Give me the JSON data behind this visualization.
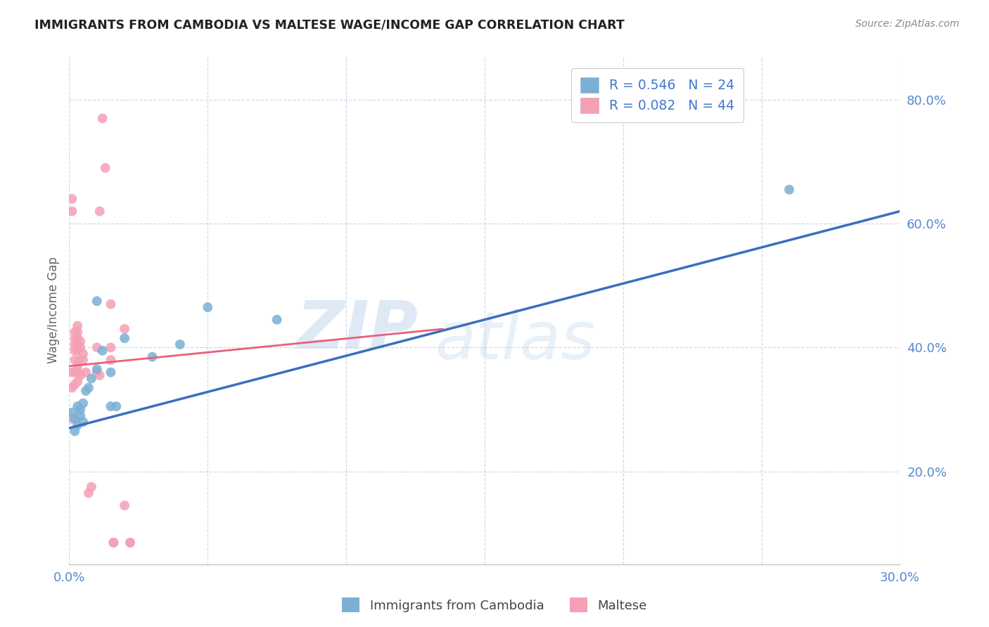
{
  "title": "IMMIGRANTS FROM CAMBODIA VS MALTESE WAGE/INCOME GAP CORRELATION CHART",
  "source": "Source: ZipAtlas.com",
  "ylabel_label": "Wage/Income Gap",
  "x_min": 0.0,
  "x_max": 0.3,
  "y_min": 0.05,
  "y_max": 0.87,
  "right_ytick_values": [
    0.2,
    0.4,
    0.6,
    0.8
  ],
  "bottom_xtick_values": [
    0.0,
    0.05,
    0.1,
    0.15,
    0.2,
    0.25,
    0.3
  ],
  "legend_entries": [
    {
      "label": "R = 0.546   N = 24",
      "color": "#7bafd4"
    },
    {
      "label": "R = 0.082   N = 44",
      "color": "#f4a0b5"
    }
  ],
  "blue_scatter": [
    [
      0.001,
      0.295
    ],
    [
      0.002,
      0.265
    ],
    [
      0.002,
      0.285
    ],
    [
      0.003,
      0.275
    ],
    [
      0.003,
      0.305
    ],
    [
      0.004,
      0.29
    ],
    [
      0.004,
      0.3
    ],
    [
      0.005,
      0.28
    ],
    [
      0.005,
      0.31
    ],
    [
      0.006,
      0.33
    ],
    [
      0.007,
      0.335
    ],
    [
      0.008,
      0.35
    ],
    [
      0.01,
      0.365
    ],
    [
      0.01,
      0.475
    ],
    [
      0.012,
      0.395
    ],
    [
      0.015,
      0.305
    ],
    [
      0.015,
      0.36
    ],
    [
      0.017,
      0.305
    ],
    [
      0.02,
      0.415
    ],
    [
      0.03,
      0.385
    ],
    [
      0.04,
      0.405
    ],
    [
      0.05,
      0.465
    ],
    [
      0.075,
      0.445
    ],
    [
      0.26,
      0.655
    ]
  ],
  "pink_scatter": [
    [
      0.001,
      0.285
    ],
    [
      0.001,
      0.335
    ],
    [
      0.001,
      0.36
    ],
    [
      0.001,
      0.62
    ],
    [
      0.001,
      0.64
    ],
    [
      0.002,
      0.34
    ],
    [
      0.002,
      0.36
    ],
    [
      0.002,
      0.38
    ],
    [
      0.002,
      0.395
    ],
    [
      0.002,
      0.405
    ],
    [
      0.002,
      0.415
    ],
    [
      0.002,
      0.425
    ],
    [
      0.003,
      0.345
    ],
    [
      0.003,
      0.36
    ],
    [
      0.003,
      0.37
    ],
    [
      0.003,
      0.395
    ],
    [
      0.003,
      0.405
    ],
    [
      0.003,
      0.415
    ],
    [
      0.003,
      0.425
    ],
    [
      0.003,
      0.435
    ],
    [
      0.004,
      0.355
    ],
    [
      0.004,
      0.38
    ],
    [
      0.004,
      0.4
    ],
    [
      0.004,
      0.41
    ],
    [
      0.005,
      0.38
    ],
    [
      0.005,
      0.39
    ],
    [
      0.006,
      0.36
    ],
    [
      0.007,
      0.165
    ],
    [
      0.008,
      0.175
    ],
    [
      0.01,
      0.36
    ],
    [
      0.01,
      0.4
    ],
    [
      0.011,
      0.355
    ],
    [
      0.011,
      0.62
    ],
    [
      0.012,
      0.77
    ],
    [
      0.013,
      0.69
    ],
    [
      0.015,
      0.38
    ],
    [
      0.015,
      0.4
    ],
    [
      0.015,
      0.47
    ],
    [
      0.016,
      0.085
    ],
    [
      0.016,
      0.085
    ],
    [
      0.02,
      0.145
    ],
    [
      0.02,
      0.43
    ],
    [
      0.022,
      0.085
    ],
    [
      0.022,
      0.085
    ]
  ],
  "blue_line_x": [
    0.0,
    0.3
  ],
  "blue_line_y": [
    0.27,
    0.62
  ],
  "pink_line_x": [
    0.0,
    0.135
  ],
  "pink_line_y": [
    0.37,
    0.43
  ],
  "blue_color": "#7bafd4",
  "pink_color": "#f4a0b5",
  "blue_line_color": "#3a6fbe",
  "pink_line_color": "#e8607a",
  "watermark_line1": "ZIP",
  "watermark_line2": "atlas",
  "background_color": "#ffffff",
  "grid_color": "#d0d8e8"
}
